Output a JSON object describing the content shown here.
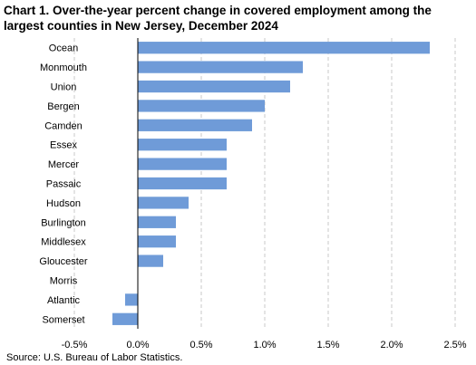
{
  "chart_data": {
    "type": "bar",
    "orientation": "horizontal",
    "title": "Chart 1.  Over-the-year percent change in covered employment among the largest counties in New Jersey, December 2024",
    "source": "Source: U.S. Bureau of Labor Statistics.",
    "categories": [
      "Ocean",
      "Monmouth",
      "Union",
      "Bergen",
      "Camden",
      "Essex",
      "Mercer",
      "Passaic",
      "Hudson",
      "Burlington",
      "Middlesex",
      "Gloucester",
      "Morris",
      "Atlantic",
      "Somerset"
    ],
    "values": [
      2.3,
      1.3,
      1.2,
      1.0,
      0.9,
      0.7,
      0.7,
      0.7,
      0.4,
      0.3,
      0.3,
      0.2,
      0.0,
      -0.1,
      -0.2
    ],
    "xlim": [
      -0.5,
      2.5
    ],
    "xticks": [
      -0.5,
      0.0,
      0.5,
      1.0,
      1.5,
      2.0,
      2.5
    ],
    "xtick_labels": [
      "-0.5%",
      "0.0%",
      "0.5%",
      "1.0%",
      "1.5%",
      "2.0%",
      "2.5%"
    ],
    "xlabel": "",
    "ylabel": "",
    "grid": "vertical dashed",
    "bar_color": "#6F9BD8"
  }
}
